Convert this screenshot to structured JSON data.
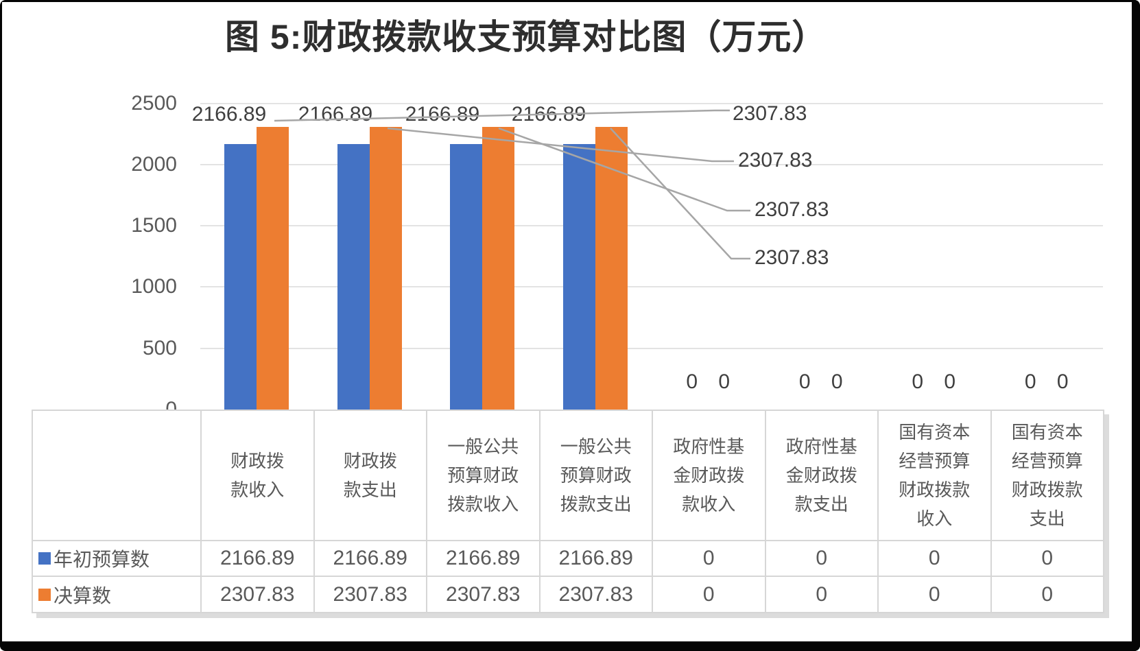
{
  "title": "图  5:财政拨款收支预算对比图（万元）",
  "colors": {
    "series_budget_blue": "#4472C4",
    "series_final_orange": "#ED7D31",
    "gridline": "#E3E3E3",
    "axis_text": "#595959",
    "data_label_text": "#3F3F3F",
    "leader_line": "#A6A6A6",
    "table_border": "#D6D6D6",
    "frame": "#050505"
  },
  "chart_data": {
    "type": "bar",
    "title": "图  5:财政拨款收支预算对比图（万元）",
    "unit_label": "万元",
    "categories": [
      "财政拨\n款收入",
      "财政拨\n款支出",
      "一般公共\n预算财政\n拨款收入",
      "一般公共\n预算财政\n拨款支出",
      "政府性基\n金财政拨\n款收入",
      "政府性基\n金财政拨\n款支出",
      "国有资本\n经营预算\n财政拨款\n收入",
      "国有资本\n经营预算\n财政拨款\n支出"
    ],
    "series": [
      {
        "name": "年初预算数",
        "color": "#4472C4",
        "values": [
          2166.89,
          2166.89,
          2166.89,
          2166.89,
          0,
          0,
          0,
          0
        ]
      },
      {
        "name": "决算数",
        "color": "#ED7D31",
        "values": [
          2307.83,
          2307.83,
          2307.83,
          2307.83,
          0,
          0,
          0,
          0
        ]
      }
    ],
    "bar_value_labels": [
      "2166.89",
      "2166.89",
      "2166.89",
      "2166.89"
    ],
    "callout_labels": [
      "2307.83",
      "2307.83",
      "2307.83",
      "2307.83"
    ],
    "zero_label": "0",
    "y_axis": {
      "min": 0,
      "max": 2500,
      "step": 500,
      "tick_labels": [
        "2500",
        "2000",
        "1500",
        "1000",
        "500",
        "0"
      ]
    },
    "grid": true,
    "legend_position": "table-left"
  },
  "table": {
    "row_headers": [
      "年初预算数",
      "决算数"
    ],
    "columns": [
      "财政拨\n款收入",
      "财政拨\n款支出",
      "一般公共\n预算财政\n拨款收入",
      "一般公共\n预算财政\n拨款支出",
      "政府性基\n金财政拨\n款收入",
      "政府性基\n金财政拨\n款支出",
      "国有资本\n经营预算\n财政拨款\n收入",
      "国有资本\n经营预算\n财政拨款\n支出"
    ],
    "rows": [
      [
        "2166.89",
        "2166.89",
        "2166.89",
        "2166.89",
        "0",
        "0",
        "0",
        "0"
      ],
      [
        "2307.83",
        "2307.83",
        "2307.83",
        "2307.83",
        "0",
        "0",
        "0",
        "0"
      ]
    ]
  }
}
